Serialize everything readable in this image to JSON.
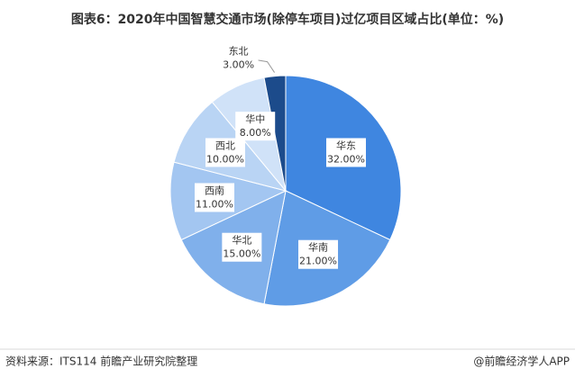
{
  "chart_data": {
    "type": "pie",
    "title": "图表6：2020年中国智慧交通市场(除停车项目)过亿项目区域占比(单位：%)",
    "categories": [
      "华东",
      "华南",
      "华北",
      "西南",
      "西北",
      "华中",
      "东北"
    ],
    "values": [
      32,
      21,
      15,
      11,
      10,
      8,
      3
    ],
    "value_labels": [
      "32.00%",
      "21.00%",
      "15.00%",
      "11.00%",
      "10.00%",
      "8.00%",
      "3.00%"
    ],
    "colors": [
      "#3f86e0",
      "#5f9ce6",
      "#80b0eb",
      "#a3c6f1",
      "#b9d4f4",
      "#d0e2f8",
      "#1c4b8b"
    ]
  },
  "footer": {
    "source": "资料来源：ITS114 前瞻产业研究院整理",
    "brand": "@前瞻经济学人APP"
  }
}
